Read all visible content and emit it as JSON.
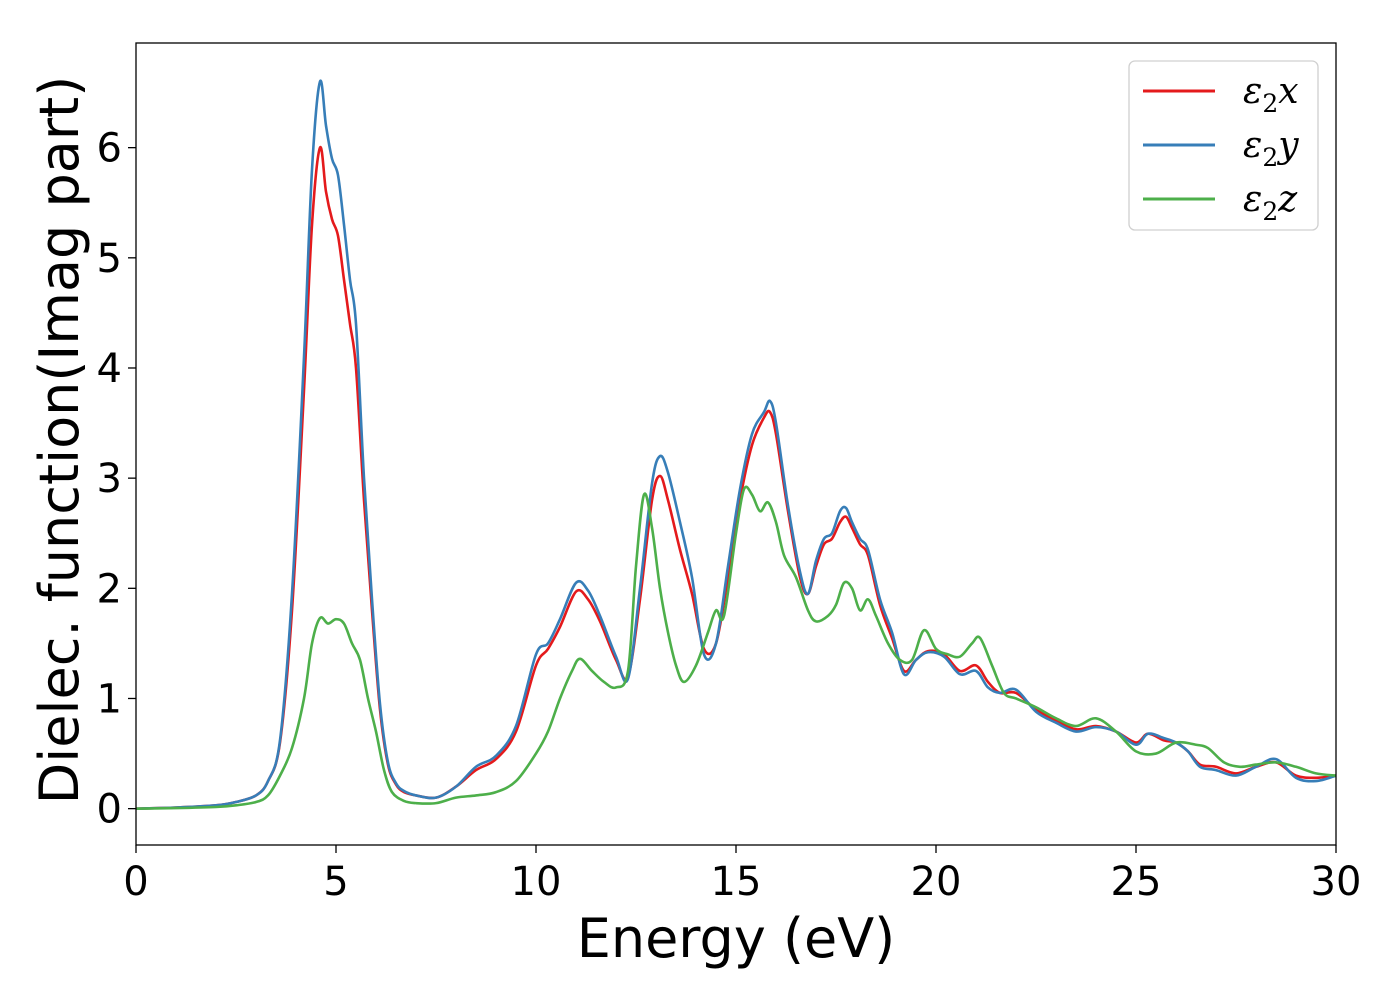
{
  "chart_data": {
    "type": "line",
    "xlabel": "Energy (eV)",
    "ylabel": "Dielec. function(Imag part)",
    "xlim": [
      0,
      30
    ],
    "ylim": [
      -0.33,
      6.95
    ],
    "xticks": [
      0,
      5,
      10,
      15,
      20,
      25,
      30
    ],
    "yticks": [
      0,
      1,
      2,
      3,
      4,
      5,
      6
    ],
    "grid": false,
    "legend_position": "top-right",
    "series": [
      {
        "name": "ε2x",
        "legend": {
          "base": "ε",
          "sub": "2",
          "tail": "x"
        },
        "color": "#e41a1c",
        "x": [
          0,
          1,
          2,
          2.5,
          3,
          3.3,
          3.6,
          3.9,
          4.2,
          4.4,
          4.6,
          4.75,
          4.9,
          5.05,
          5.2,
          5.35,
          5.5,
          5.7,
          5.9,
          6.1,
          6.3,
          6.5,
          6.7,
          7,
          7.5,
          8,
          8.5,
          9,
          9.5,
          10,
          10.3,
          10.6,
          11,
          11.3,
          11.6,
          12,
          12.3,
          12.6,
          12.9,
          13.1,
          13.3,
          13.6,
          13.9,
          14.2,
          14.5,
          14.8,
          15.1,
          15.4,
          15.7,
          15.85,
          16,
          16.3,
          16.6,
          16.8,
          17,
          17.2,
          17.4,
          17.6,
          17.75,
          17.9,
          18.1,
          18.3,
          18.6,
          18.9,
          19.2,
          19.5,
          19.8,
          20.2,
          20.6,
          21,
          21.3,
          21.6,
          22,
          22.5,
          23,
          23.5,
          24,
          24.5,
          25,
          25.3,
          25.7,
          26,
          26.3,
          26.6,
          27,
          27.5,
          28,
          28.5,
          29,
          29.5,
          30
        ],
        "y": [
          0,
          0.01,
          0.03,
          0.06,
          0.12,
          0.25,
          0.6,
          1.8,
          3.8,
          5.3,
          6.0,
          5.6,
          5.35,
          5.2,
          4.8,
          4.4,
          4.0,
          2.8,
          1.8,
          0.9,
          0.4,
          0.22,
          0.15,
          0.12,
          0.1,
          0.2,
          0.35,
          0.45,
          0.7,
          1.3,
          1.45,
          1.65,
          1.97,
          1.9,
          1.7,
          1.35,
          1.2,
          1.9,
          2.8,
          3.02,
          2.8,
          2.35,
          1.95,
          1.45,
          1.5,
          2.1,
          2.8,
          3.3,
          3.55,
          3.6,
          3.4,
          2.7,
          2.1,
          1.95,
          2.2,
          2.4,
          2.45,
          2.6,
          2.65,
          2.55,
          2.4,
          2.3,
          1.85,
          1.55,
          1.25,
          1.35,
          1.43,
          1.4,
          1.25,
          1.3,
          1.15,
          1.05,
          1.05,
          0.9,
          0.8,
          0.72,
          0.75,
          0.7,
          0.6,
          0.68,
          0.62,
          0.6,
          0.52,
          0.4,
          0.38,
          0.32,
          0.38,
          0.42,
          0.3,
          0.28,
          0.3
        ]
      },
      {
        "name": "ε2y",
        "legend": {
          "base": "ε",
          "sub": "2",
          "tail": "y"
        },
        "color": "#377eb8",
        "x": [
          0,
          1,
          2,
          2.5,
          3,
          3.3,
          3.6,
          3.9,
          4.2,
          4.4,
          4.6,
          4.75,
          4.9,
          5.05,
          5.2,
          5.35,
          5.5,
          5.7,
          5.9,
          6.1,
          6.3,
          6.5,
          6.7,
          7,
          7.5,
          8,
          8.5,
          9,
          9.5,
          10,
          10.3,
          10.6,
          11,
          11.3,
          11.6,
          12,
          12.3,
          12.6,
          12.9,
          13.1,
          13.3,
          13.6,
          13.9,
          14.2,
          14.5,
          14.8,
          15.1,
          15.4,
          15.7,
          15.85,
          16,
          16.3,
          16.6,
          16.8,
          17,
          17.2,
          17.4,
          17.6,
          17.75,
          17.9,
          18.1,
          18.3,
          18.6,
          18.9,
          19.2,
          19.5,
          19.8,
          20.2,
          20.6,
          21,
          21.3,
          21.6,
          22,
          22.5,
          23,
          23.5,
          24,
          24.5,
          25,
          25.3,
          25.7,
          26,
          26.3,
          26.6,
          27,
          27.5,
          28,
          28.5,
          29,
          29.5,
          30
        ],
        "y": [
          0,
          0.01,
          0.03,
          0.06,
          0.12,
          0.25,
          0.62,
          1.95,
          4.1,
          5.8,
          6.6,
          6.2,
          5.9,
          5.75,
          5.3,
          4.8,
          4.4,
          3.0,
          1.9,
          0.95,
          0.42,
          0.23,
          0.16,
          0.12,
          0.1,
          0.2,
          0.38,
          0.48,
          0.75,
          1.4,
          1.5,
          1.72,
          2.05,
          1.98,
          1.75,
          1.38,
          1.18,
          2.0,
          2.95,
          3.2,
          3.05,
          2.6,
          2.1,
          1.4,
          1.5,
          2.2,
          2.9,
          3.4,
          3.6,
          3.7,
          3.5,
          2.75,
          2.15,
          1.95,
          2.25,
          2.45,
          2.5,
          2.7,
          2.73,
          2.6,
          2.45,
          2.35,
          1.9,
          1.6,
          1.22,
          1.35,
          1.42,
          1.38,
          1.22,
          1.25,
          1.1,
          1.05,
          1.08,
          0.88,
          0.78,
          0.7,
          0.74,
          0.7,
          0.58,
          0.68,
          0.64,
          0.6,
          0.52,
          0.38,
          0.35,
          0.3,
          0.38,
          0.45,
          0.28,
          0.25,
          0.3
        ]
      },
      {
        "name": "ε2z",
        "legend": {
          "base": "ε",
          "sub": "2",
          "tail": "z"
        },
        "color": "#4daf4a",
        "x": [
          0,
          1,
          2,
          2.5,
          3,
          3.3,
          3.6,
          3.9,
          4.2,
          4.4,
          4.6,
          4.8,
          5,
          5.2,
          5.4,
          5.6,
          5.8,
          6,
          6.2,
          6.4,
          6.7,
          7,
          7.5,
          8,
          8.5,
          9,
          9.5,
          10,
          10.3,
          10.6,
          10.9,
          11.1,
          11.4,
          11.7,
          12,
          12.3,
          12.5,
          12.7,
          12.9,
          13.1,
          13.3,
          13.5,
          13.7,
          14,
          14.3,
          14.5,
          14.7,
          15,
          15.2,
          15.4,
          15.6,
          15.8,
          16,
          16.2,
          16.5,
          16.8,
          17,
          17.3,
          17.5,
          17.7,
          17.9,
          18.1,
          18.3,
          18.5,
          18.8,
          19.1,
          19.4,
          19.7,
          20,
          20.3,
          20.6,
          20.9,
          21.1,
          21.4,
          21.7,
          22,
          22.5,
          23,
          23.5,
          24,
          24.5,
          25,
          25.5,
          26,
          26.5,
          26.8,
          27.2,
          27.6,
          28,
          28.5,
          29,
          29.5,
          30
        ],
        "y": [
          0,
          0.005,
          0.015,
          0.03,
          0.06,
          0.12,
          0.3,
          0.55,
          1.0,
          1.5,
          1.73,
          1.68,
          1.72,
          1.68,
          1.5,
          1.35,
          1.0,
          0.7,
          0.35,
          0.15,
          0.07,
          0.05,
          0.05,
          0.1,
          0.12,
          0.15,
          0.25,
          0.5,
          0.7,
          1.0,
          1.25,
          1.36,
          1.25,
          1.15,
          1.1,
          1.25,
          2.2,
          2.85,
          2.55,
          2.0,
          1.6,
          1.3,
          1.15,
          1.3,
          1.6,
          1.8,
          1.75,
          2.5,
          2.9,
          2.85,
          2.7,
          2.78,
          2.6,
          2.3,
          2.1,
          1.8,
          1.7,
          1.75,
          1.85,
          2.05,
          2.0,
          1.8,
          1.9,
          1.75,
          1.5,
          1.35,
          1.35,
          1.62,
          1.45,
          1.4,
          1.38,
          1.5,
          1.55,
          1.3,
          1.05,
          1.0,
          0.92,
          0.82,
          0.75,
          0.82,
          0.7,
          0.52,
          0.5,
          0.6,
          0.58,
          0.55,
          0.42,
          0.38,
          0.4,
          0.42,
          0.38,
          0.32,
          0.3
        ]
      }
    ]
  }
}
